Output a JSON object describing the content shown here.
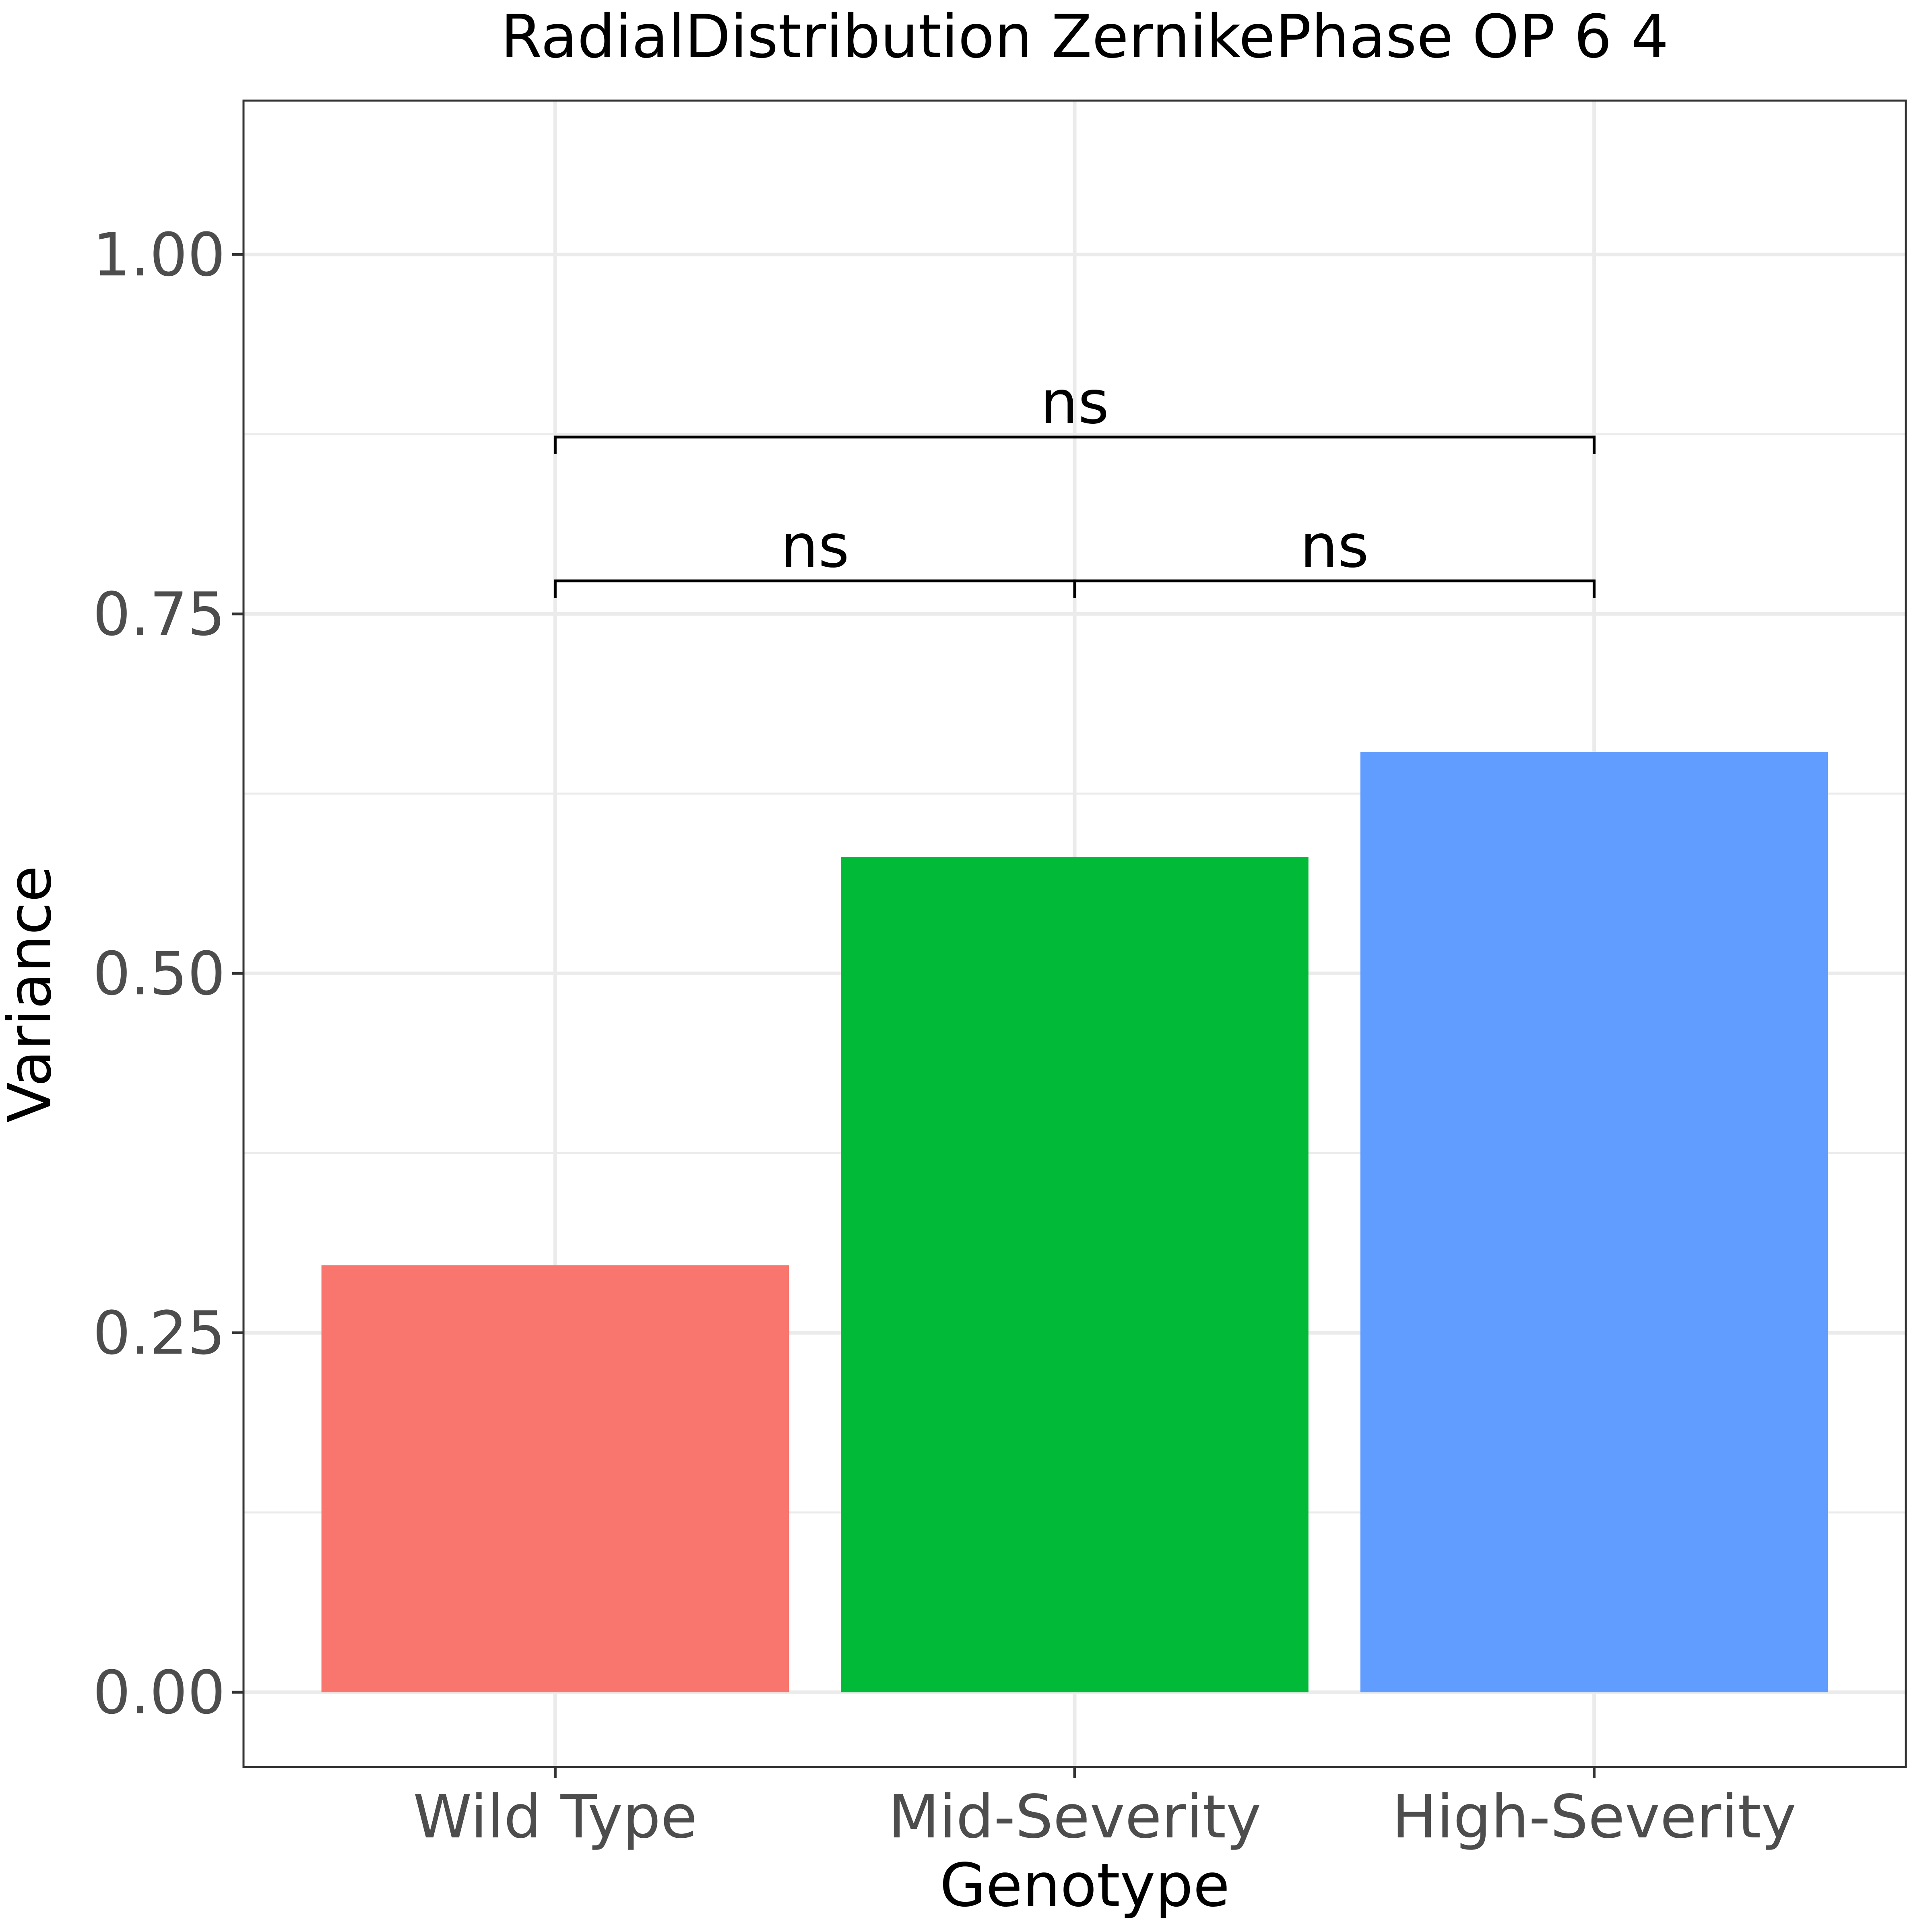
{
  "chart_data": {
    "type": "bar",
    "title": "RadialDistribution ZernikePhase OP 6 4",
    "xlabel": "Genotype",
    "ylabel": "Variance",
    "categories": [
      "Wild Type",
      "Mid-Severity",
      "High-Severity"
    ],
    "values": [
      0.297,
      0.581,
      0.654
    ],
    "colors": [
      "#F8766D",
      "#00BA38",
      "#619CFF"
    ],
    "ylim": [
      -0.052,
      1.107
    ],
    "yticks": [
      0.0,
      0.25,
      0.5,
      0.75,
      1.0
    ],
    "ytick_labels": [
      "0.00",
      "0.25",
      "0.50",
      "0.75",
      "1.00"
    ],
    "grid": true,
    "legend": "none",
    "significance": [
      {
        "from": 0,
        "to": 1,
        "y": 0.773,
        "label": "ns"
      },
      {
        "from": 1,
        "to": 2,
        "y": 0.773,
        "label": "ns"
      },
      {
        "from": 0,
        "to": 2,
        "y": 0.873,
        "label": "ns"
      }
    ]
  }
}
